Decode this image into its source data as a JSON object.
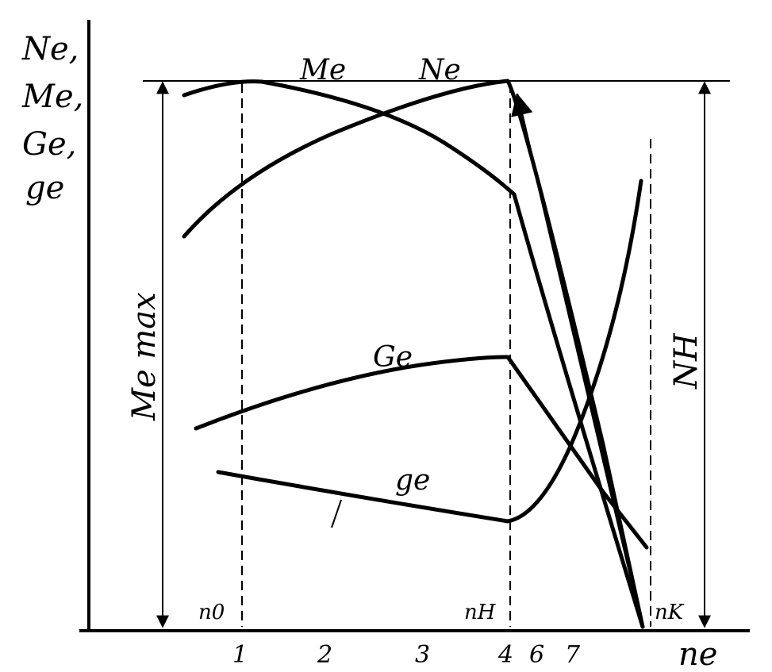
{
  "axes": {
    "y_label": [
      "Ne,",
      "Me,",
      "Ge,",
      "ge"
    ],
    "x_label": "ne"
  },
  "curves": {
    "me": "Me",
    "ne": "Ne",
    "ge_big": "Ge",
    "ge_small": "ge"
  },
  "dimensions": {
    "me_max": "Me max",
    "n_h": "NH"
  },
  "speeds": {
    "n0": "n0",
    "nh": "nH",
    "nk": "nK"
  },
  "ticks": [
    "1",
    "2",
    "3",
    "4",
    "6",
    "7"
  ]
}
